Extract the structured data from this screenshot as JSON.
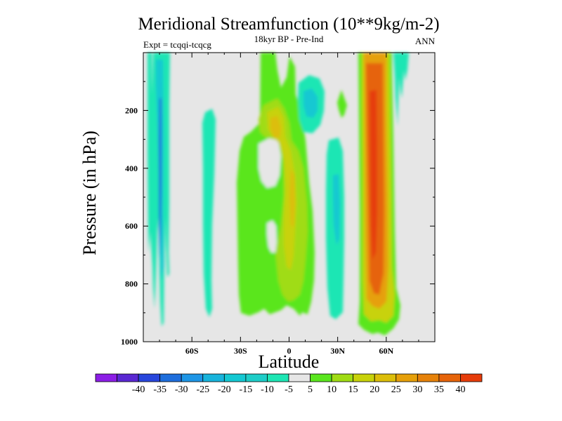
{
  "chart_data": {
    "type": "heatmap",
    "title": "Meridional Streamfunction (10**9kg/m-2)",
    "subtitle": "18kyr BP - Pre-Ind",
    "left_label": "Expt = tcqqi-tcqcg",
    "right_label": "ANN",
    "xlabel": "Latitude",
    "ylabel": "Pressure (in hPa)",
    "x_range": [
      -90,
      90
    ],
    "y_range": [
      0,
      1000
    ],
    "x_ticks": [
      {
        "value": -60,
        "label": "60S"
      },
      {
        "value": -30,
        "label": "30S"
      },
      {
        "value": 0,
        "label": "0"
      },
      {
        "value": 30,
        "label": "30N"
      },
      {
        "value": 60,
        "label": "60N"
      }
    ],
    "y_ticks": [
      {
        "value": 200,
        "label": "200"
      },
      {
        "value": 400,
        "label": "400"
      },
      {
        "value": 600,
        "label": "600"
      },
      {
        "value": 800,
        "label": "800"
      },
      {
        "value": 1000,
        "label": "1000"
      }
    ],
    "background_color": "#e6e6e6",
    "colorbar": {
      "levels": [
        -40,
        -35,
        -30,
        -25,
        -20,
        -15,
        -10,
        -5,
        5,
        10,
        15,
        20,
        25,
        30,
        35,
        40
      ],
      "labels": [
        "-40",
        "-35",
        "-30",
        "-25",
        "-20",
        "-15",
        "-10",
        "-5",
        "5",
        "10",
        "15",
        "20",
        "25",
        "30",
        "35",
        "40"
      ],
      "colors": [
        "#8c1ee6",
        "#5a28d2",
        "#2846dc",
        "#1e6edc",
        "#1e96e6",
        "#18b4dc",
        "#14c8d2",
        "#1ecdc8",
        "#1ee6b4",
        "#e6e6e6",
        "#5ae61e",
        "#a0dc14",
        "#c8d20a",
        "#dcbe0a",
        "#e6a00a",
        "#e6820a",
        "#e6640a",
        "#e63c0a"
      ]
    },
    "features": [
      {
        "name": "southern-cyan-band-outer",
        "lat": [
          -89,
          -70
        ],
        "p": [
          15,
          465
        ],
        "value": -10
      },
      {
        "name": "southern-cyan-band-core",
        "lat": [
          -82,
          -78
        ],
        "p": [
          50,
          400
        ],
        "value": -15
      },
      {
        "name": "southern-blue-core",
        "lat": [
          -81,
          -79
        ],
        "p": [
          250,
          380
        ],
        "value": -30
      },
      {
        "name": "cyan-cell-45S",
        "lat": [
          -53,
          -47
        ],
        "p": [
          200,
          910
        ],
        "value": -10
      },
      {
        "name": "green-cell-equatorial",
        "lat": [
          -32,
          10
        ],
        "p": [
          15,
          950
        ],
        "value": 5
      },
      {
        "name": "yellow-cell-equatorial",
        "lat": [
          -18,
          5
        ],
        "p": [
          140,
          900
        ],
        "value": 15
      },
      {
        "name": "cyan-cell-10N",
        "lat": [
          8,
          20
        ],
        "p": [
          70,
          230
        ],
        "value": -10
      },
      {
        "name": "cyan-cell-25N",
        "lat": [
          24,
          34
        ],
        "p": [
          210,
          950
        ],
        "value": -10
      },
      {
        "name": "green-cell-31N",
        "lat": [
          30,
          34
        ],
        "p": [
          90,
          190
        ],
        "value": 5
      },
      {
        "name": "red-cell-50N",
        "lat": [
          42,
          60
        ],
        "p": [
          15,
          970
        ],
        "value": 40
      },
      {
        "name": "northern-cyan-wisps",
        "lat": [
          62,
          76
        ],
        "p": [
          15,
          260
        ],
        "value": -10
      }
    ]
  }
}
